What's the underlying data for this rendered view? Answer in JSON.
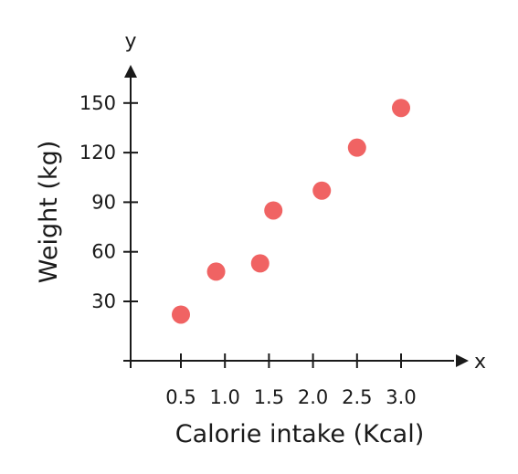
{
  "chart_data": {
    "type": "scatter",
    "title": "",
    "xlabel": "Calorie intake (Kcal)",
    "ylabel": "Weight (kg)",
    "x_axis_letter": "x",
    "y_axis_letter": "y",
    "x_ticks": [
      0.5,
      1.0,
      1.5,
      2.0,
      2.5,
      3.0
    ],
    "x_tick_labels": [
      "0.5",
      "1.0",
      "1.5",
      "2.0",
      "2.5",
      "3.0"
    ],
    "y_ticks": [
      30,
      60,
      90,
      120,
      150
    ],
    "y_tick_labels": [
      "30",
      "60",
      "90",
      "120",
      "150"
    ],
    "points": [
      {
        "x": 0.5,
        "y": 22
      },
      {
        "x": 0.9,
        "y": 48
      },
      {
        "x": 1.4,
        "y": 53
      },
      {
        "x": 1.55,
        "y": 85
      },
      {
        "x": 2.1,
        "y": 97
      },
      {
        "x": 2.5,
        "y": 123
      },
      {
        "x": 3.0,
        "y": 147
      }
    ],
    "marker_color": "#f06363",
    "axis_color": "#1a1a1a",
    "grid": false,
    "legend": false
  }
}
